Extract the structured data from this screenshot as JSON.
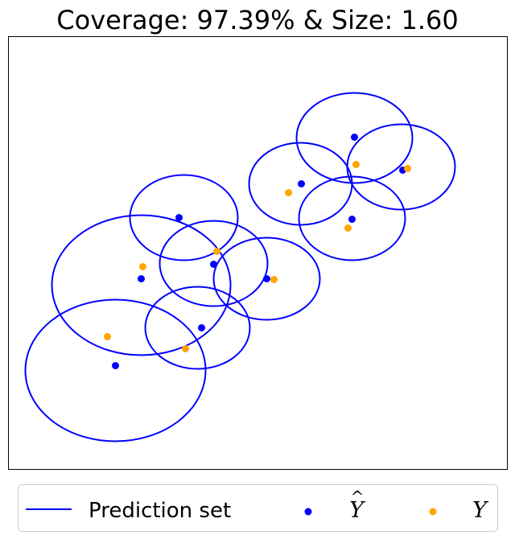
{
  "chart_data": {
    "type": "scatter",
    "title": "Coverage: 97.39% & Size: 1.60",
    "xlabel": "",
    "ylabel": "",
    "xlim": [
      0,
      620
    ],
    "ylim": [
      0,
      538
    ],
    "axis_ticks": false,
    "grid": false,
    "legend_placement": "bottom",
    "series": [
      {
        "name": "Prediction set",
        "kind": "ellipse",
        "color": "#0000ff",
        "ellipses": [
          {
            "cx": 430,
            "cy": 412,
            "rx": 72,
            "ry": 56
          },
          {
            "cx": 488,
            "cy": 376,
            "rx": 67,
            "ry": 53
          },
          {
            "cx": 363,
            "cy": 355,
            "rx": 64,
            "ry": 51
          },
          {
            "cx": 427,
            "cy": 312,
            "rx": 66,
            "ry": 52
          },
          {
            "cx": 218,
            "cy": 313,
            "rx": 67,
            "ry": 53
          },
          {
            "cx": 255,
            "cy": 256,
            "rx": 67,
            "ry": 53
          },
          {
            "cx": 165,
            "cy": 229,
            "rx": 111,
            "ry": 87
          },
          {
            "cx": 321,
            "cy": 237,
            "rx": 66,
            "ry": 51
          },
          {
            "cx": 235,
            "cy": 176,
            "rx": 65,
            "ry": 51
          },
          {
            "cx": 133,
            "cy": 123,
            "rx": 112,
            "ry": 88
          }
        ]
      },
      {
        "name": "Ŷ",
        "kind": "points",
        "color": "#0000ff",
        "points": [
          {
            "x": 430,
            "y": 413
          },
          {
            "x": 490,
            "y": 372
          },
          {
            "x": 364,
            "y": 355
          },
          {
            "x": 427,
            "y": 311
          },
          {
            "x": 212,
            "y": 313
          },
          {
            "x": 255,
            "y": 255
          },
          {
            "x": 165,
            "y": 237
          },
          {
            "x": 321,
            "y": 237
          },
          {
            "x": 240,
            "y": 176
          },
          {
            "x": 133,
            "y": 129
          }
        ]
      },
      {
        "name": "Y",
        "kind": "points",
        "color": "#ffa500",
        "points": [
          {
            "x": 432,
            "y": 379
          },
          {
            "x": 496,
            "y": 374
          },
          {
            "x": 348,
            "y": 344
          },
          {
            "x": 422,
            "y": 300
          },
          {
            "x": 259,
            "y": 271
          },
          {
            "x": 167,
            "y": 252
          },
          {
            "x": 330,
            "y": 236
          },
          {
            "x": 123,
            "y": 165
          },
          {
            "x": 220,
            "y": 150
          }
        ]
      }
    ]
  },
  "legend": {
    "line_label": "Prediction set",
    "pred_label": "Y",
    "pred_hat": "^",
    "true_label": "Y"
  }
}
